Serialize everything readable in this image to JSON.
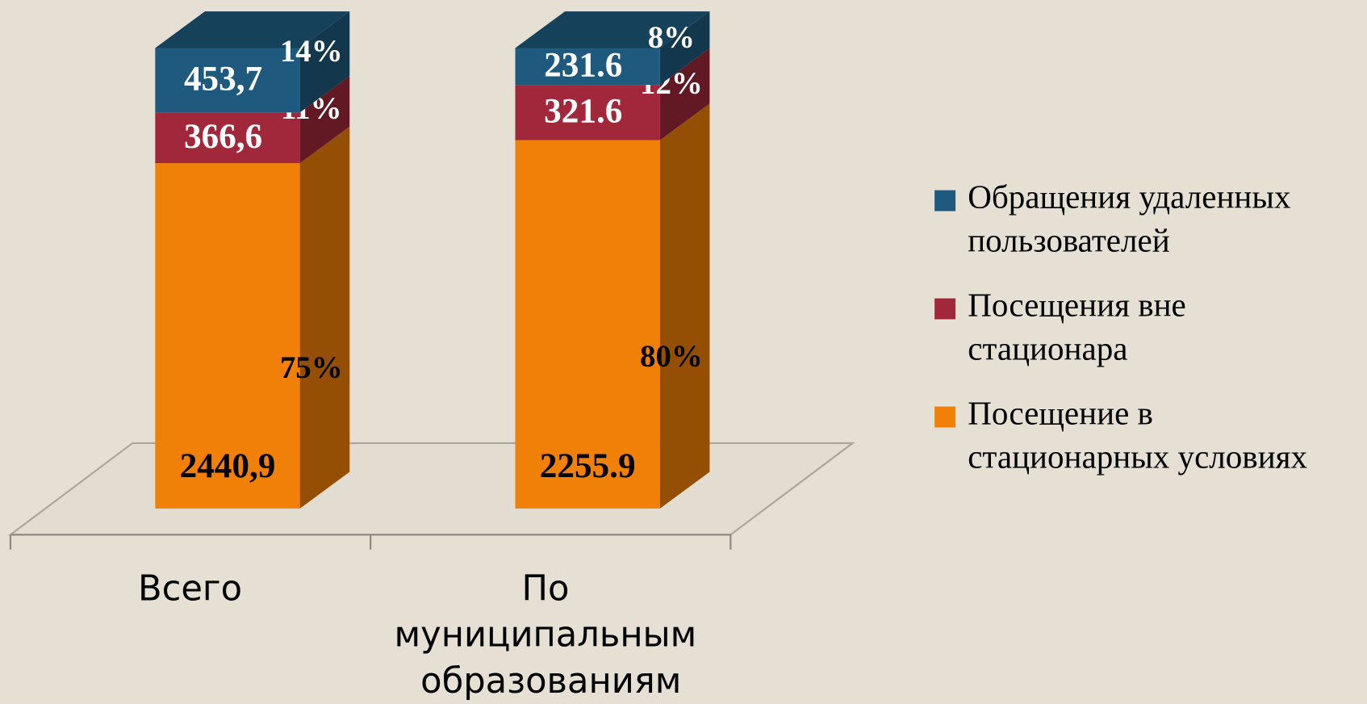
{
  "chart_data": {
    "type": "bar3d_stacked",
    "categories": [
      "Всего",
      "По муниципальным образованиям"
    ],
    "series": [
      {
        "name": "Посещение в стационарных условиях",
        "color": "#f08008",
        "values": [
          2440.9,
          2255.9
        ],
        "value_labels": [
          "2440,9",
          "2255.9"
        ],
        "percents": [
          75,
          80
        ],
        "percent_labels": [
          "75%",
          "80%"
        ]
      },
      {
        "name": "Посещения вне стационара",
        "color": "#a0283a",
        "values": [
          366.6,
          321.6
        ],
        "value_labels": [
          "366,6",
          "321.6"
        ],
        "percents": [
          11,
          12
        ],
        "percent_labels": [
          "11%",
          "12%"
        ]
      },
      {
        "name": "Обращения удаленных пользователей",
        "color": "#1f5a7e",
        "values": [
          453.7,
          231.6
        ],
        "value_labels": [
          "453,7",
          "231.6"
        ],
        "percents": [
          14,
          8
        ],
        "percent_labels": [
          "14%",
          "8%"
        ]
      }
    ]
  }
}
